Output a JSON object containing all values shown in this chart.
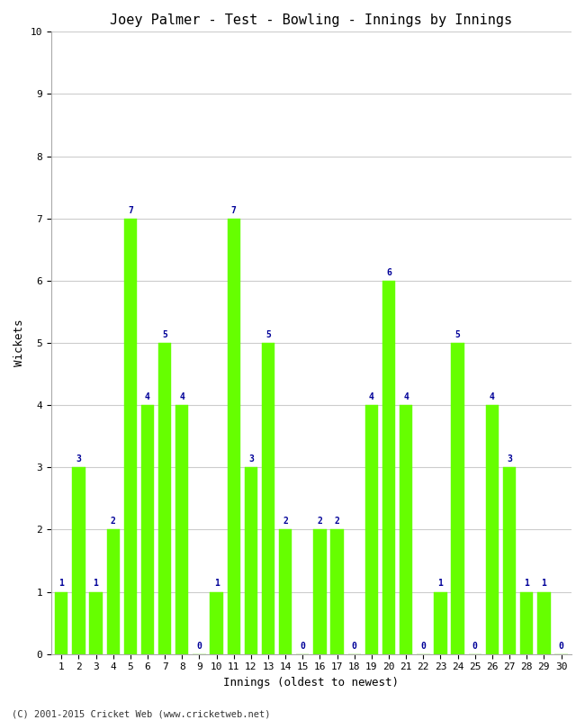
{
  "title": "Joey Palmer - Test - Bowling - Innings by Innings",
  "xlabel": "Innings (oldest to newest)",
  "ylabel": "Wickets",
  "footnote": "(C) 2001-2015 Cricket Web (www.cricketweb.net)",
  "innings": [
    1,
    2,
    3,
    4,
    5,
    6,
    7,
    8,
    9,
    10,
    11,
    12,
    13,
    14,
    15,
    16,
    17,
    18,
    19,
    20,
    21,
    22,
    23,
    24,
    25,
    26,
    27,
    28,
    29,
    30
  ],
  "wickets": [
    1,
    3,
    1,
    2,
    7,
    4,
    5,
    4,
    0,
    1,
    7,
    3,
    5,
    2,
    0,
    2,
    2,
    0,
    4,
    6,
    4,
    0,
    1,
    5,
    0,
    4,
    3,
    1,
    1,
    0
  ],
  "bar_color": "#66ff00",
  "bar_edge_color": "#66ff00",
  "label_color": "#000099",
  "background_color": "#ffffff",
  "grid_color": "#cccccc",
  "ylim": [
    0,
    10
  ],
  "yticks": [
    0,
    1,
    2,
    3,
    4,
    5,
    6,
    7,
    8,
    9,
    10
  ],
  "title_fontsize": 11,
  "axis_label_fontsize": 9,
  "tick_fontsize": 8,
  "bar_label_fontsize": 7,
  "footnote_fontsize": 7.5
}
